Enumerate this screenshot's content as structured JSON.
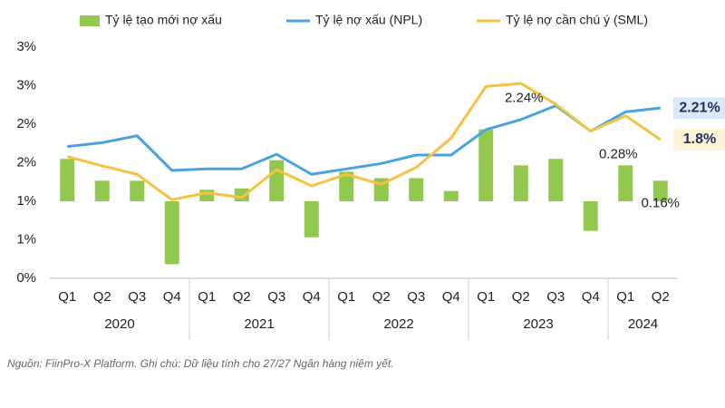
{
  "chart_data": {
    "type": "combo",
    "categories": [
      "Q1",
      "Q2",
      "Q3",
      "Q4",
      "Q1",
      "Q2",
      "Q3",
      "Q4",
      "Q1",
      "Q2",
      "Q3",
      "Q4",
      "Q1",
      "Q2",
      "Q3",
      "Q4",
      "Q1",
      "Q2"
    ],
    "category_groups": [
      "2020",
      "2020",
      "2020",
      "2020",
      "2021",
      "2021",
      "2021",
      "2021",
      "2022",
      "2022",
      "2022",
      "2022",
      "2023",
      "2023",
      "2023",
      "2023",
      "2024",
      "2024"
    ],
    "series": [
      {
        "name": "Tỷ lệ tạo mới nợ xấu",
        "type": "bar",
        "axis": "y2",
        "color": "#92c84e",
        "values": [
          0.33,
          0.16,
          0.16,
          -0.49,
          0.09,
          0.1,
          0.32,
          -0.28,
          0.23,
          0.18,
          0.18,
          0.08,
          0.56,
          0.28,
          0.33,
          -0.23,
          0.28,
          0.16
        ],
        "value_labels": [
          null,
          null,
          null,
          null,
          null,
          null,
          null,
          null,
          null,
          null,
          null,
          null,
          null,
          null,
          null,
          null,
          "0.28%",
          "0.16%"
        ]
      },
      {
        "name": "Tỷ lệ nợ xấu (NPL)",
        "type": "line",
        "color": "#4aa3df",
        "values": [
          1.71,
          1.76,
          1.85,
          1.4,
          1.42,
          1.42,
          1.61,
          1.35,
          1.42,
          1.49,
          1.6,
          1.6,
          1.93,
          2.06,
          2.24,
          1.91,
          2.16,
          2.21
        ],
        "value_labels": [
          null,
          null,
          null,
          null,
          null,
          null,
          null,
          null,
          null,
          null,
          null,
          null,
          null,
          null,
          "2.24%",
          null,
          null,
          "2.21%"
        ]
      },
      {
        "name": "Tỷ lệ nợ cần chú ý (SML)",
        "type": "line",
        "color": "#f5c242",
        "values": [
          1.58,
          1.46,
          1.35,
          1.02,
          1.11,
          1.05,
          1.41,
          1.2,
          1.35,
          1.22,
          1.44,
          1.82,
          2.49,
          2.53,
          2.26,
          1.91,
          2.11,
          1.8
        ],
        "value_labels": [
          null,
          null,
          null,
          null,
          null,
          null,
          null,
          null,
          null,
          null,
          null,
          null,
          null,
          null,
          null,
          null,
          null,
          "1.8%"
        ]
      }
    ],
    "ylim": [
      0,
      3
    ],
    "yticks": [
      {
        "value": 0,
        "label": "0%"
      },
      {
        "value": 0.5,
        "label": "1%"
      },
      {
        "value": 1,
        "label": "1%"
      },
      {
        "value": 1.5,
        "label": "2%"
      },
      {
        "value": 2,
        "label": "2%"
      },
      {
        "value": 2.5,
        "label": "3%"
      },
      {
        "value": 3,
        "label": "3%"
      }
    ],
    "y2lim": [
      -0.6,
      1.2
    ],
    "note": "Nguồn: FiinPro-X Platform. Ghi chú: Dữ liệu  tính cho 27/27 Ngân hàng niêm yết."
  }
}
